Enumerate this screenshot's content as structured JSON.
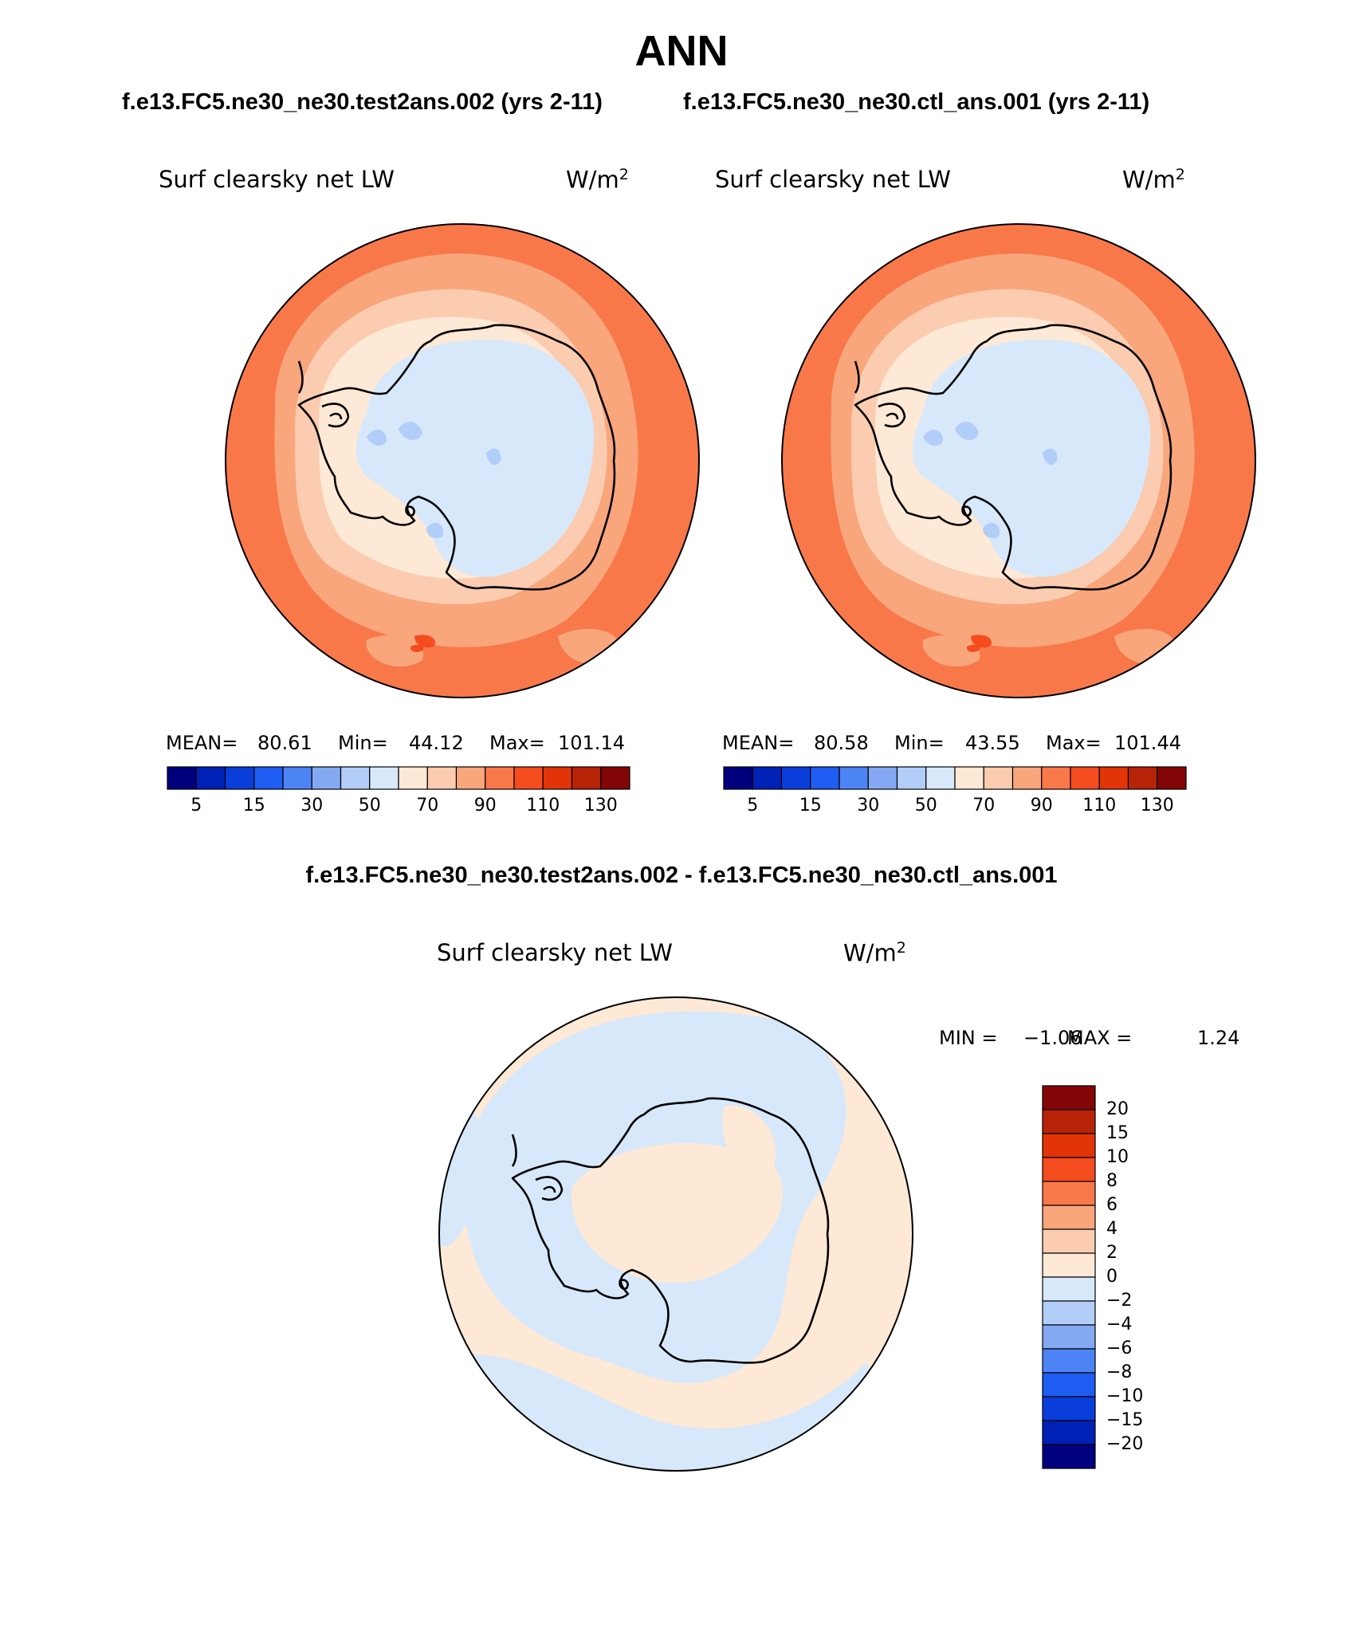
{
  "title": "ANN",
  "panels": {
    "test": {
      "case": "f.e13.FC5.ne30_ne30.test2ans.002 (yrs 2-11)",
      "variable": "Surf clearsky net LW",
      "units": "W/m",
      "units_exp": "2",
      "mean_label": "MEAN=",
      "mean": "80.61",
      "min_label": "Min=",
      "min": "44.12",
      "max_label": "Max=",
      "max": "101.14"
    },
    "control": {
      "case": "f.e13.FC5.ne30_ne30.ctl_ans.001 (yrs 2-11)",
      "variable": "Surf clearsky net LW",
      "units": "W/m",
      "units_exp": "2",
      "mean_label": "MEAN=",
      "mean": "80.58",
      "min_label": "Min=",
      "min": "43.55",
      "max_label": "Max=",
      "max": "101.44"
    },
    "difference": {
      "title": "f.e13.FC5.ne30_ne30.test2ans.002 - f.e13.FC5.ne30_ne30.ctl_ans.001",
      "variable": "Surf clearsky net LW",
      "units": "W/m",
      "units_exp": "2",
      "min_label": "MIN =",
      "min": "−1.06",
      "max_label": "MAX =",
      "max": "1.24"
    }
  },
  "colorbars": {
    "absolute": {
      "colors": [
        "#00007f",
        "#0021b5",
        "#0a3edb",
        "#1f5cf2",
        "#4d84f5",
        "#84a9f2",
        "#b2cdf7",
        "#d7e8fb",
        "#fde9d6",
        "#fbccb0",
        "#f9a67d",
        "#f9784a",
        "#f54c1f",
        "#e33409",
        "#b82407",
        "#840606"
      ],
      "tick_labels": [
        "5",
        "15",
        "30",
        "50",
        "70",
        "90",
        "110",
        "130"
      ]
    },
    "difference": {
      "colors": [
        "#840606",
        "#b82407",
        "#e33409",
        "#f54c1f",
        "#f9784a",
        "#f9a67d",
        "#fbccb0",
        "#fde9d6",
        "#d7e8fb",
        "#b2cdf7",
        "#84a9f2",
        "#4d84f5",
        "#1f5cf2",
        "#0a3edb",
        "#0021b5",
        "#00007f"
      ],
      "tick_labels": [
        "20",
        "15",
        "10",
        "8",
        "6",
        "4",
        "2",
        "0",
        "−2",
        "−4",
        "−6",
        "−8",
        "−10",
        "−15",
        "−20"
      ]
    }
  }
}
